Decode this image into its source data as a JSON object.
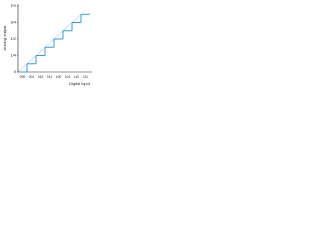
{
  "chart_data": {
    "type": "step",
    "x_label": "Digital input",
    "y_label": "Analog output",
    "categories": [
      "000",
      "001",
      "010",
      "011",
      "100",
      "101",
      "110",
      "111"
    ],
    "values": [
      0,
      1,
      2,
      3,
      4,
      5,
      6,
      7
    ],
    "color": "#3a9ad9",
    "ylim": [
      0,
      8
    ],
    "yticks": [
      0,
      {
        "value": 2,
        "label": "1/4"
      },
      {
        "value": 4,
        "label": "1/2"
      },
      {
        "value": 6,
        "label": "3/4"
      },
      {
        "value": 8,
        "label": "FS"
      }
    ],
    "grid": false
  }
}
